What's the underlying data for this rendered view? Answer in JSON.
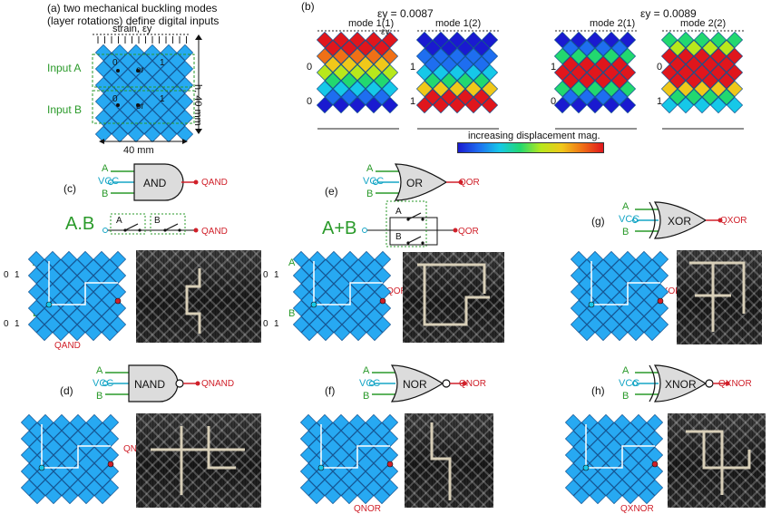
{
  "panel_a": {
    "label": "(a)",
    "title_line1": "two mechanical buckling modes",
    "title_line2": "(layer rotations) define digital inputs",
    "strain_label": "strain, εy",
    "input_a": "Input A",
    "input_b": "Input B",
    "height_label": "h, 40 mm",
    "width_label": "40 mm",
    "or_label": "or",
    "zero": "0",
    "one": "1"
  },
  "panel_b": {
    "label": "(b)",
    "strain_left": "εy = 0.0087",
    "strain_right": "εy = 0.0089",
    "mode_1_1": "mode 1(1)",
    "mode_1_2": "mode 1(2)",
    "mode_2_1": "mode 2(1)",
    "mode_2_2": "mode 2(2)",
    "eps_small": "εy",
    "colorbar_label": "increasing displacement mag.",
    "zero": "0",
    "one": "1"
  },
  "gates": {
    "and": {
      "panel": "(c)",
      "name": "AND",
      "a": "A",
      "vcc": "VCC",
      "b": "B",
      "out": "QAND",
      "expr": "A.B",
      "logic_out": "QAND",
      "label_a": "A",
      "label_b": "B",
      "grid_q": "QAND"
    },
    "or": {
      "panel": "(e)",
      "name": "OR",
      "a": "A",
      "vcc": "VCC",
      "b": "B",
      "out": "QOR",
      "expr": "A+B",
      "logic_out": "QOR",
      "label_a": "A",
      "label_b": "B",
      "grid_q": "QOR"
    },
    "xor": {
      "panel": "(g)",
      "name": "XOR",
      "a": "A",
      "vcc": "VCC",
      "b": "B",
      "out": "QXOR",
      "grid_q": "QXOR"
    },
    "nand": {
      "panel": "(d)",
      "name": "NAND",
      "a": "A",
      "vcc": "VCC",
      "b": "B",
      "out": "QNAND",
      "grid_q": "QNAND"
    },
    "nor": {
      "panel": "(f)",
      "name": "NOR",
      "a": "A",
      "vcc": "VCC",
      "b": "B",
      "out": "QNOR",
      "grid_q": "QNOR"
    },
    "xnor": {
      "panel": "(h)",
      "name": "XNOR",
      "a": "A",
      "vcc": "VCC",
      "b": "B",
      "out": "QXNOR",
      "grid_q": "QXNOR"
    }
  },
  "input_state": {
    "zero": "0",
    "one": "1"
  },
  "colors": {
    "lattice_blue": "#27a9f2",
    "gate_fill": "#dcdcdc",
    "wire_green": "#2a9a2a",
    "vcc_cyan": "#16a6c6",
    "output_red": "#d0202a"
  }
}
